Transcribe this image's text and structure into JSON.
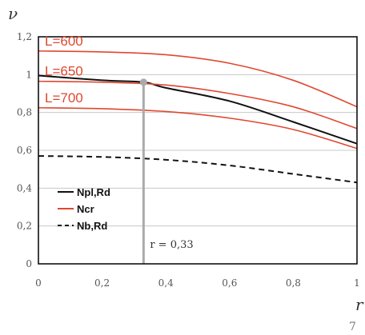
{
  "chart_data": {
    "type": "line",
    "title": "",
    "xlabel": "r",
    "ylabel": "ν",
    "xlim": [
      0,
      1
    ],
    "ylim": [
      0,
      1.2
    ],
    "x_ticks": [
      "0",
      "0,2",
      "0,4",
      "0,6",
      "0,8",
      "1"
    ],
    "y_ticks": [
      "0",
      "0,2",
      "0,4",
      "0,6",
      "0,8",
      "1",
      "1,2"
    ],
    "grid": true,
    "legend_position": "bottom-left",
    "series": [
      {
        "name": "Npl,Rd",
        "color": "#111111",
        "style": "solid",
        "x": [
          0,
          0.2,
          0.33,
          0.4,
          0.6,
          0.8,
          1.0
        ],
        "y": [
          0.995,
          0.97,
          0.96,
          0.93,
          0.86,
          0.75,
          0.635
        ]
      },
      {
        "name": "Ncr",
        "label": "L=600",
        "color": "#e0472f",
        "style": "solid",
        "x": [
          0,
          0.2,
          0.4,
          0.6,
          0.8,
          1.0
        ],
        "y": [
          1.125,
          1.12,
          1.105,
          1.06,
          0.97,
          0.83
        ]
      },
      {
        "name": "",
        "label": "L=650",
        "color": "#e0472f",
        "style": "solid",
        "x": [
          0,
          0.2,
          0.4,
          0.6,
          0.8,
          1.0
        ],
        "y": [
          0.965,
          0.96,
          0.945,
          0.9,
          0.83,
          0.715
        ]
      },
      {
        "name": "",
        "label": "L=700",
        "color": "#e0472f",
        "style": "solid",
        "x": [
          0,
          0.2,
          0.4,
          0.6,
          0.8,
          1.0
        ],
        "y": [
          0.825,
          0.82,
          0.805,
          0.77,
          0.71,
          0.61
        ]
      },
      {
        "name": "Nb,Rd",
        "color": "#111111",
        "style": "dashed",
        "x": [
          0,
          0.2,
          0.4,
          0.6,
          0.8,
          1.0
        ],
        "y": [
          0.57,
          0.565,
          0.55,
          0.52,
          0.475,
          0.43
        ]
      }
    ],
    "marker": {
      "x": 0.33,
      "y": 0.96,
      "color": "#aaaaaa",
      "label": "r = 0,33"
    },
    "legend": [
      {
        "label": "Npl,Rd",
        "color": "#111111",
        "style": "solid"
      },
      {
        "label": "Ncr",
        "color": "#e0472f",
        "style": "solid"
      },
      {
        "label": "Nb,Rd",
        "color": "#111111",
        "style": "dashed"
      }
    ],
    "page_number": "7"
  }
}
